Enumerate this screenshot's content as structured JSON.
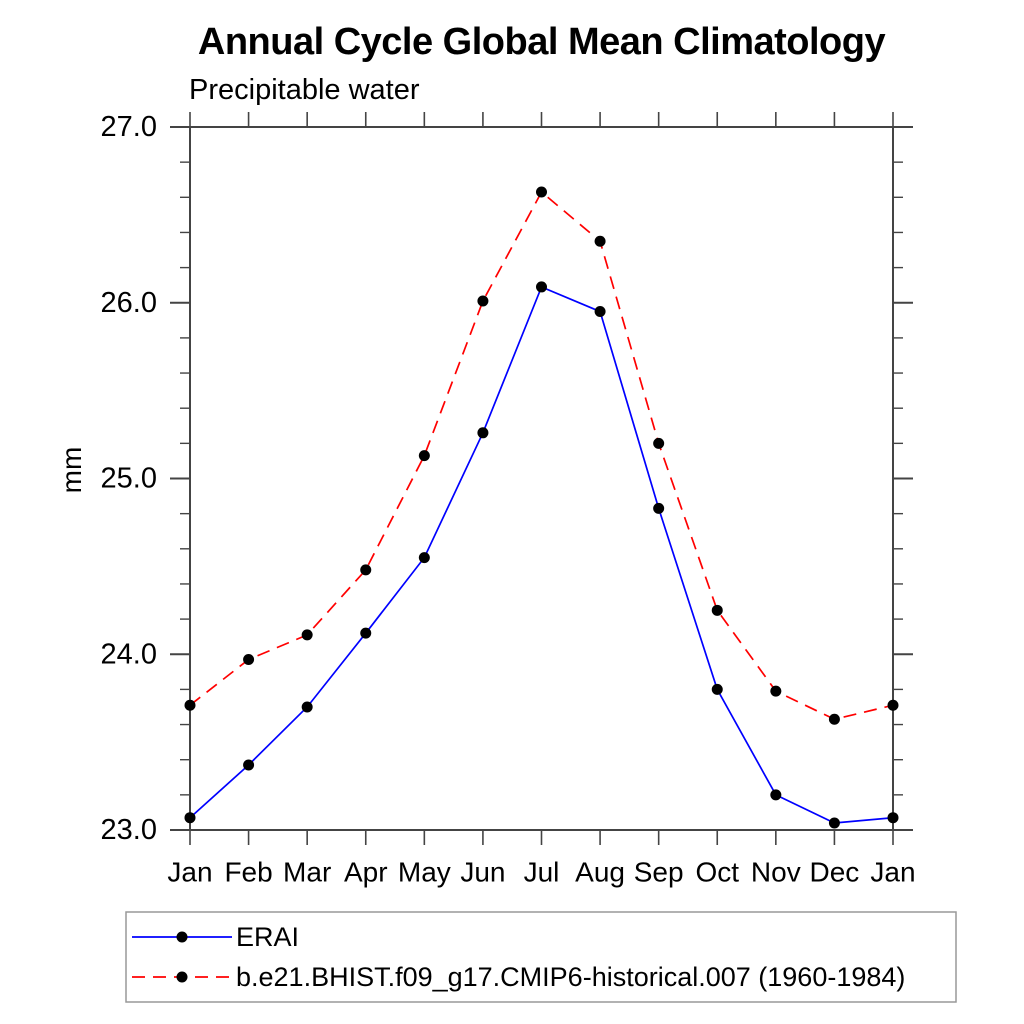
{
  "page": {
    "background": "#ffffff",
    "text_color": "#000000"
  },
  "chart_data": {
    "type": "line",
    "title": "Annual Cycle Global Mean Climatology",
    "subtitle": "Precipitable water",
    "xlabel": "",
    "ylabel": "mm",
    "categories": [
      "Jan",
      "Feb",
      "Mar",
      "Apr",
      "May",
      "Jun",
      "Jul",
      "Aug",
      "Sep",
      "Oct",
      "Nov",
      "Dec",
      "Jan"
    ],
    "ylim": [
      23.0,
      27.0
    ],
    "yticks": [
      23.0,
      24.0,
      25.0,
      26.0,
      27.0
    ],
    "ytick_labels": [
      "23.0",
      "24.0",
      "25.0",
      "26.0",
      "27.0"
    ],
    "ytick_minor_step": 0.2,
    "grid": false,
    "legend_position": "bottom-left-box",
    "axis_color": "#444444",
    "legend_border_color": "#999999",
    "marker_color": "#000000",
    "series": [
      {
        "name": "ERAI",
        "color": "#0000ff",
        "line_style": "solid",
        "marker": "circle",
        "values": [
          23.07,
          23.37,
          23.7,
          24.12,
          24.55,
          25.26,
          26.09,
          25.95,
          24.83,
          23.8,
          23.2,
          23.04,
          23.07
        ]
      },
      {
        "name": "b.e21.BHIST.f09_g17.CMIP6-historical.007 (1960-1984)",
        "color": "#ff0000",
        "line_style": "dashed",
        "marker": "circle",
        "values": [
          23.71,
          23.97,
          24.11,
          24.48,
          25.13,
          26.01,
          26.63,
          26.35,
          25.2,
          24.25,
          23.79,
          23.63,
          23.71
        ]
      }
    ]
  }
}
